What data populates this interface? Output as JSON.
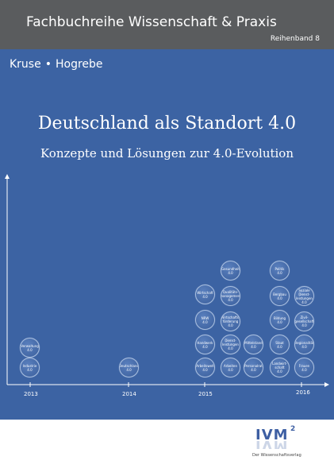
{
  "header": {
    "series_title": "Fachbuchreihe Wissenschaft & Praxis",
    "volume": "Reihenband 8"
  },
  "authors": [
    "Kruse",
    "•",
    "Hogrebe"
  ],
  "title": "Deutschland als Standort 4.0",
  "subtitle": "Konzepte und Lösungen zur 4.0-Evolution",
  "timeline": {
    "years": [
      "2013",
      "2014",
      "2015",
      "2016"
    ],
    "bubbles": [
      {
        "label": "Verwaltung\n4.0",
        "year": "2013"
      },
      {
        "label": "Industrie\n4.0",
        "year": "2013"
      },
      {
        "label": "Deutschland\n4.0",
        "year": "2014"
      },
      {
        "label": "Wirtschaft\n4.0",
        "year": "2015"
      },
      {
        "label": "NRW\n4.0",
        "year": "2015"
      },
      {
        "label": "Handwerk\n4.0",
        "year": "2015"
      },
      {
        "label": "Arbeitswelt\n4.0",
        "year": "2015"
      },
      {
        "label": "Gesundheit\n4.0",
        "year": "2015"
      },
      {
        "label": "Qualitäts-\nmanagement\n4.0",
        "year": "2015"
      },
      {
        "label": "Wirtschafts-\nförderung\n4.0",
        "year": "2015"
      },
      {
        "label": "Dienst-\nleistungen\n4.0",
        "year": "2015"
      },
      {
        "label": "Arbeiten\n4.0",
        "year": "2015"
      },
      {
        "label": "Mittelstand\n4.0",
        "year": "2015"
      },
      {
        "label": "Personalrat\n4.0",
        "year": "2015"
      },
      {
        "label": "Politik\n4.0",
        "year": "2016"
      },
      {
        "label": "Bergbau\n4.0",
        "year": "2016"
      },
      {
        "label": "Bildung\n4.0",
        "year": "2016"
      },
      {
        "label": "Staat\n4.0",
        "year": "2016"
      },
      {
        "label": "Landwirt-\nschaft\n4.0",
        "year": "2016"
      },
      {
        "label": "Soziale\nDienst-\nleistungen\n4.0",
        "year": "2016"
      },
      {
        "label": "Zivil-\ngesellschaft\n4.0",
        "year": "2016"
      },
      {
        "label": "Regionalität\n4.0",
        "year": "2016"
      },
      {
        "label": "Frauen\n4.0",
        "year": "2016"
      }
    ]
  },
  "publisher": {
    "logo": "IVM",
    "logo_sup": "2",
    "tagline": "Der Wissenschaftsverlag"
  },
  "colors": {
    "cover_blue": "#3c63a3",
    "header_gray": "#5a5c5e",
    "logo_blue": "#3e5fa3"
  }
}
